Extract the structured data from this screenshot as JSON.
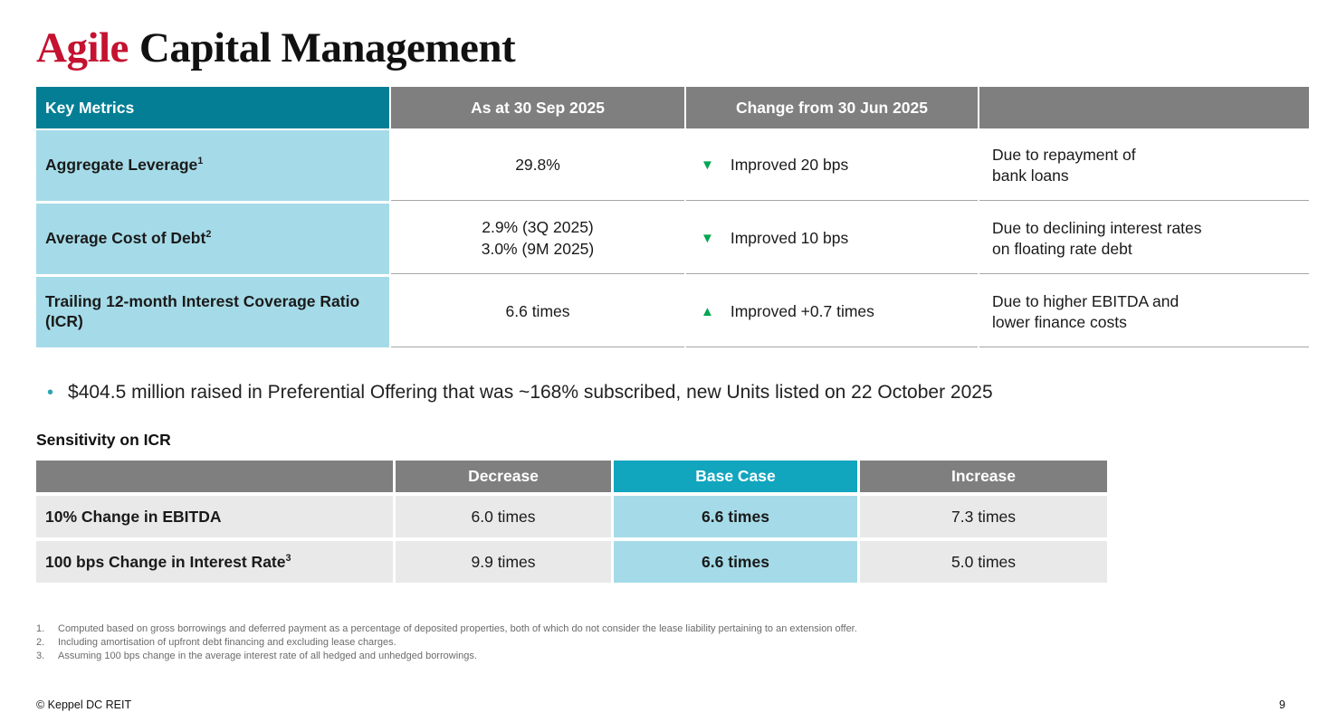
{
  "title": {
    "accent": "Agile",
    "rest": "Capital Management"
  },
  "key_metrics_table": {
    "headers": {
      "metric": "Key Metrics",
      "as_at": "As at 30 Sep 2025",
      "change": "Change from 30 Jun 2025",
      "comment": ""
    },
    "rows": [
      {
        "metric": "Aggregate Leverage",
        "metric_sup": "1",
        "value": "29.8%",
        "change_icon": "▼",
        "change_text": "Improved 20 bps",
        "comment": "Due to repayment of\nbank loans"
      },
      {
        "metric": "Average Cost of Debt",
        "metric_sup": "2",
        "value": "2.9% (3Q 2025)\n3.0% (9M 2025)",
        "change_icon": "▼",
        "change_text": "Improved 10 bps",
        "comment": "Due to declining interest rates\non floating rate debt"
      },
      {
        "metric": "Trailing 12-month Interest Coverage Ratio (ICR)",
        "metric_sup": "",
        "value": "6.6 times",
        "change_icon": "▲",
        "change_text": "Improved +0.7 times",
        "comment": "Due to higher EBITDA and\nlower finance costs"
      }
    ]
  },
  "highlight_bullet": {
    "icon": "•",
    "text": "$404.5 million raised in Preferential Offering that was ~168% subscribed, new Units listed on 22 October 2025"
  },
  "sensitivity": {
    "heading": "Sensitivity on ICR",
    "headers": {
      "label": "",
      "decrease": "Decrease",
      "base_case": "Base Case",
      "increase": "Increase"
    },
    "rows": [
      {
        "label": "10% Change in EBITDA",
        "label_sup": "",
        "decrease": "6.0 times",
        "base_case": "6.6 times",
        "increase": "7.3 times"
      },
      {
        "label": "100 bps Change in Interest Rate",
        "label_sup": "3",
        "decrease": "9.9 times",
        "base_case": "6.6 times",
        "increase": "5.0 times"
      }
    ]
  },
  "footnotes": [
    {
      "num": "1.",
      "text": "Computed based on gross borrowings and deferred payment as a percentage of deposited properties, both of which do not consider the lease liability pertaining to an extension offer."
    },
    {
      "num": "2.",
      "text": "Including amortisation of upfront debt financing and excluding lease charges."
    },
    {
      "num": "3.",
      "text": "Assuming 100 bps change in the average interest rate of all hedged and unhedged borrowings."
    }
  ],
  "footer": {
    "copyright": "© Keppel DC REIT",
    "page_number": "9"
  },
  "colors": {
    "accent_red": "#C41230",
    "teal_header": "#047E95",
    "teal_bright": "#11A5BE",
    "light_blue": "#A5DBE8",
    "gray_header": "#7F7F7F",
    "light_gray_cell": "#E9E9E9",
    "green_indicator": "#00A651"
  }
}
